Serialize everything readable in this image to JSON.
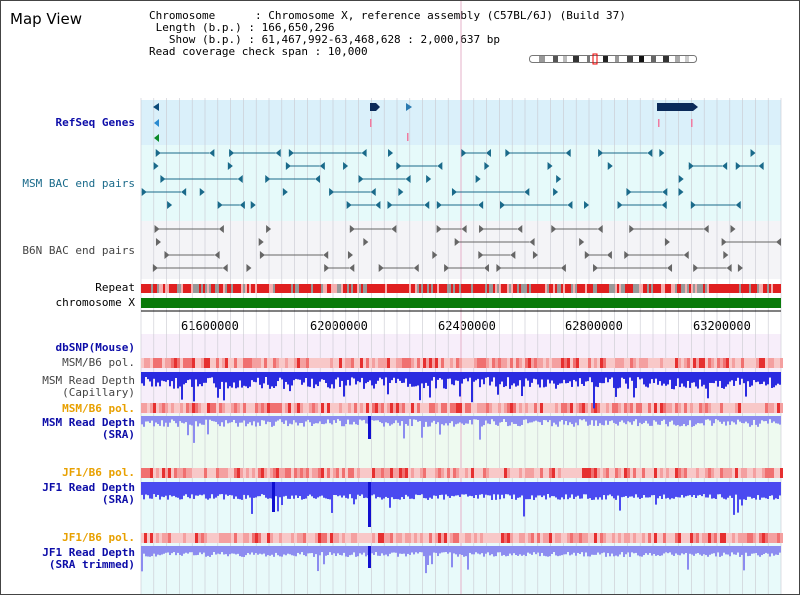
{
  "title": "Map View",
  "info": {
    "chromosome_label": "Chromosome",
    "chromosome_value": "Chromosome X, reference assembly (C57BL/6J) (Build 37)",
    "length_label": "Length (b.p.)",
    "length_value": "166,650,296",
    "show_label": "Show (b.p.)",
    "show_value": "61,467,992-63,468,628 : 2,000,637 bp",
    "coverage_label": "Read coverage check span",
    "coverage_value": "10,000"
  },
  "tracks": {
    "refseq": "RefSeq Genes",
    "msm_bac": "MSM BAC end pairs",
    "b6n_bac": "B6N BAC end pairs",
    "repeat": "Repeat",
    "chromosome": "chromosome X",
    "dbsnp": "dbSNP(Mouse)",
    "msm_b6_pol_1": "MSM/B6 pol.",
    "msm_read_depth_cap_1": "MSM Read Depth",
    "msm_read_depth_cap_2": "(Capillary)",
    "msm_b6_pol_2": "MSM/B6 pol.",
    "msm_read_depth_sra_1": "MSM Read Depth",
    "msm_read_depth_sra_2": "(SRA)",
    "jf1_b6_pol_1": "JF1/B6 pol.",
    "jf1_read_depth_sra_1": "JF1 Read Depth",
    "jf1_read_depth_sra_2": "(SRA)",
    "jf1_b6_pol_2": "JF1/B6 pol.",
    "jf1_read_depth_trim_1": "JF1 Read Depth",
    "jf1_read_depth_trim_2": "(SRA trimmed)"
  },
  "axis": {
    "ticks": [
      "61600000",
      "62000000",
      "62400000",
      "62800000",
      "63200000"
    ]
  },
  "colors": {
    "refseq_bg": "#daf0fa",
    "msm_bac_bg": "#e6fafa",
    "b6n_bac_bg": "#f4f4f7",
    "chromosome_bar": "#0a7a0a",
    "track_blue": "#1f1fe8",
    "track_blue_light": "#8c8cf0",
    "pol_red": "#e83030",
    "pol_pink": "#f6b8b8"
  }
}
